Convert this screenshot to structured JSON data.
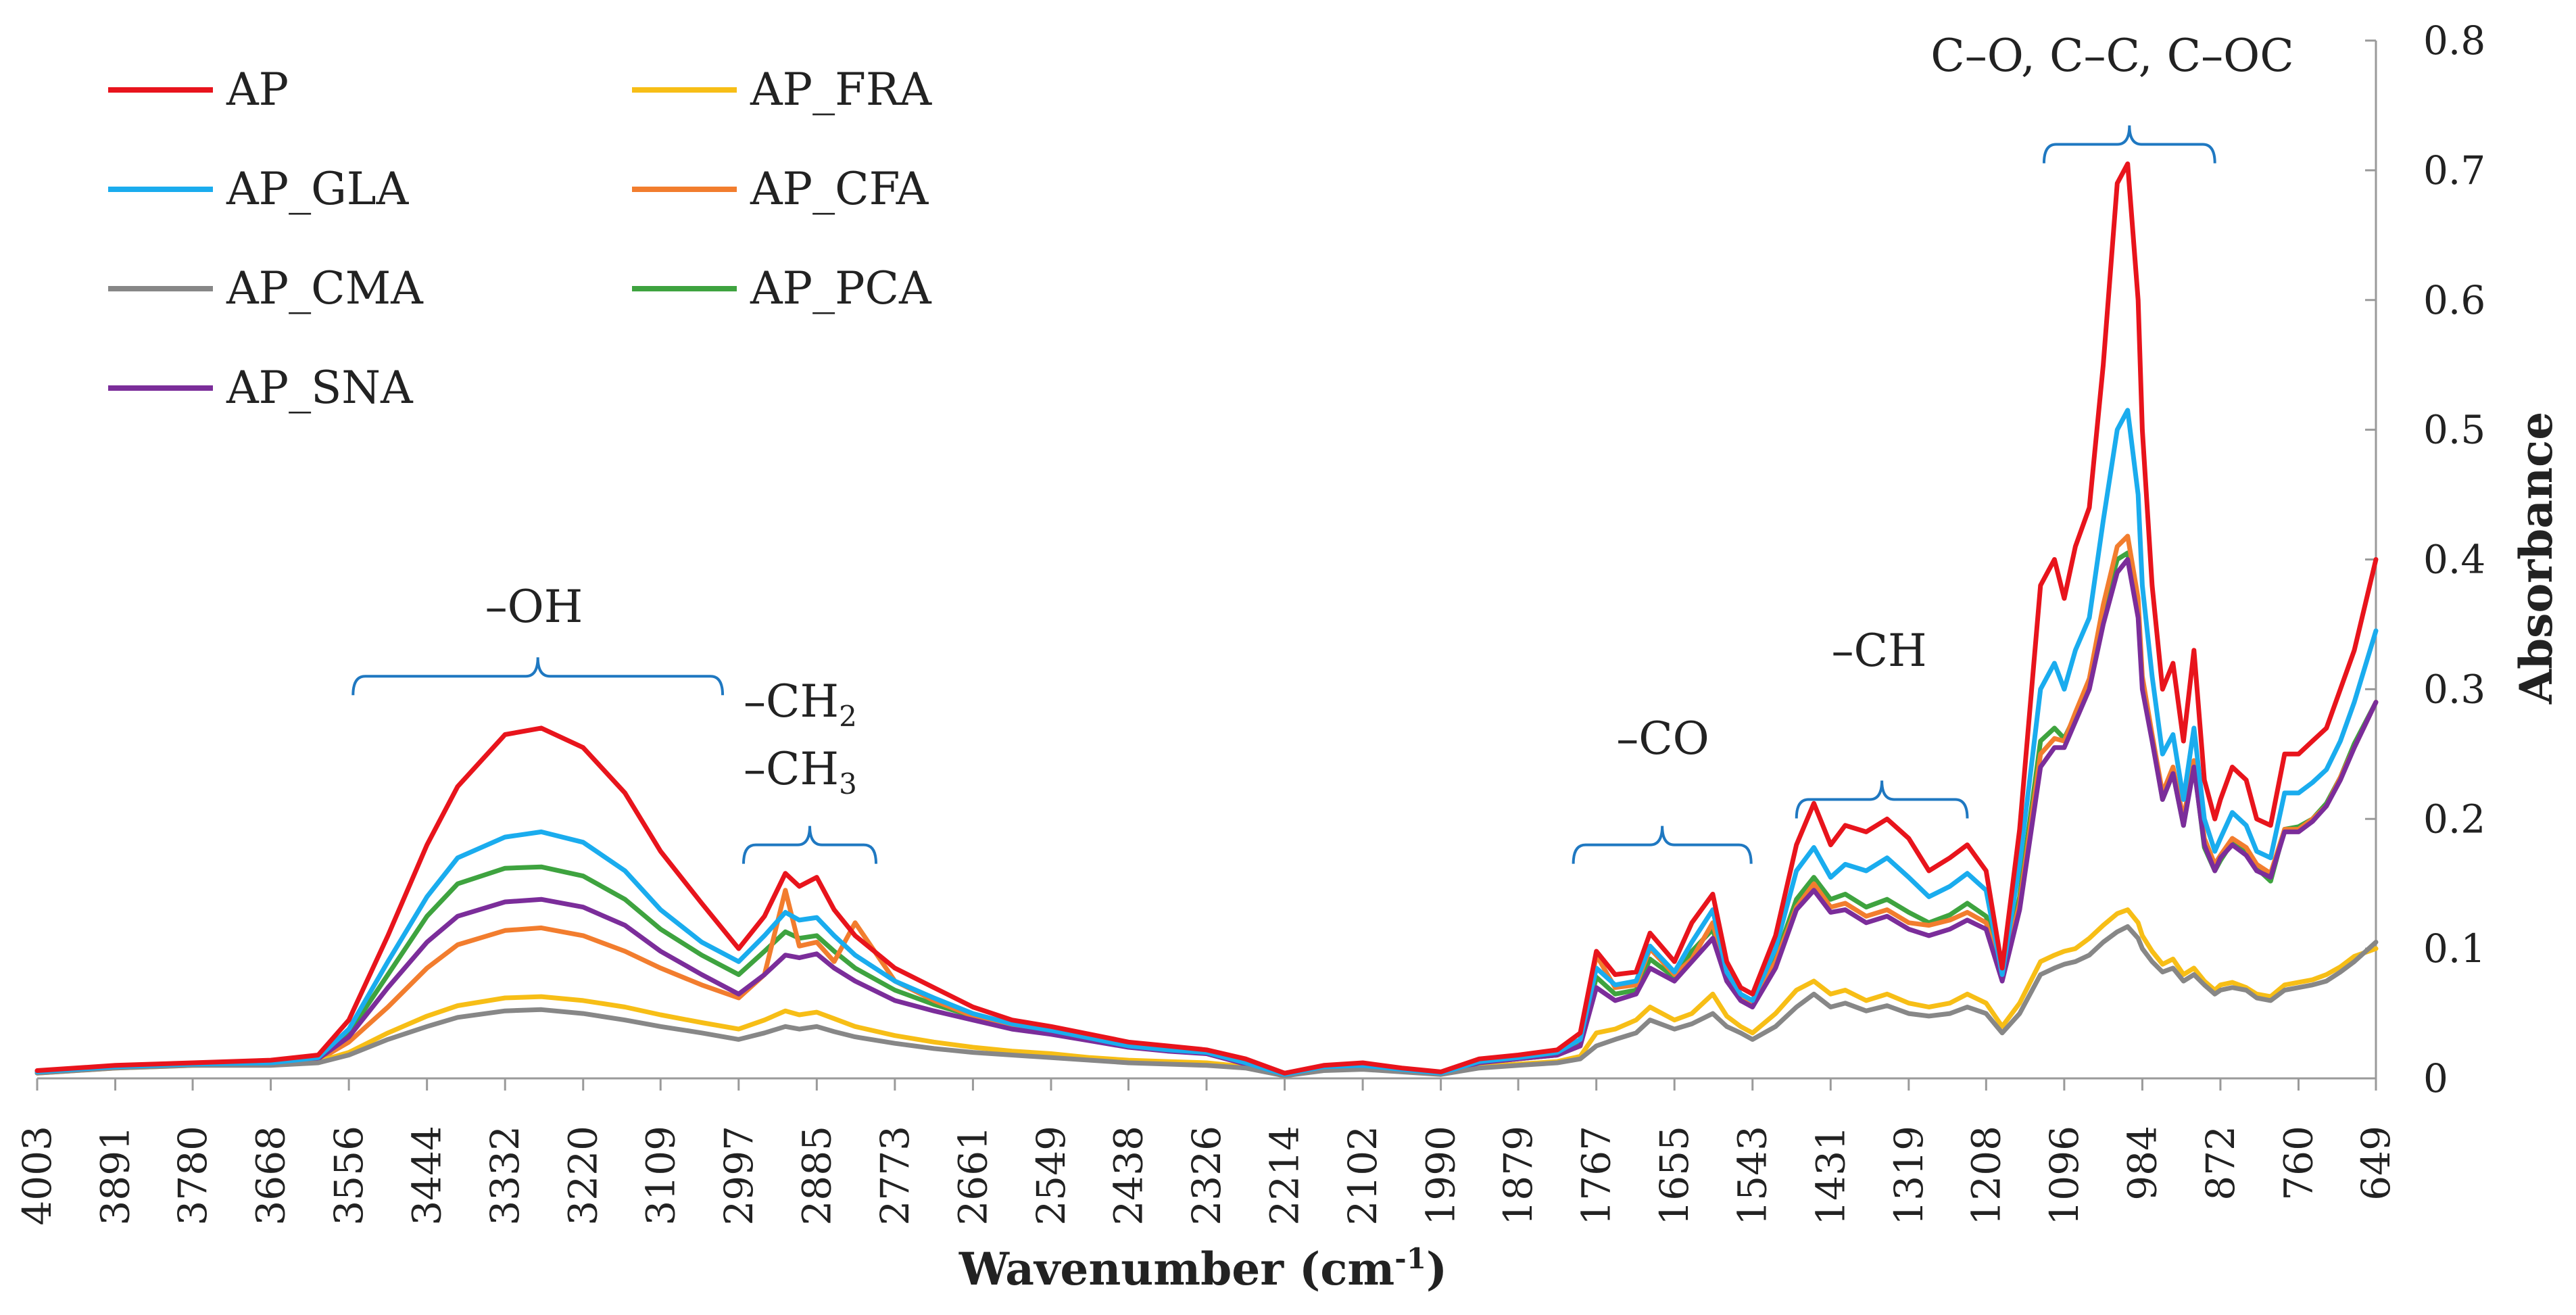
{
  "chart_data": {
    "type": "line",
    "title": "",
    "xlabel": "Wavenumber (cm",
    "xlabel_sup": "-1",
    "xlabel_suffix": ")",
    "ylabel": "Absorbance",
    "xlim": [
      4003,
      649
    ],
    "ylim": [
      0,
      0.8
    ],
    "x_ticks": [
      4003,
      3891,
      3780,
      3668,
      3556,
      3444,
      3332,
      3220,
      3109,
      2997,
      2885,
      2773,
      2661,
      2549,
      2438,
      2326,
      2214,
      2102,
      1990,
      1879,
      1767,
      1655,
      1543,
      1431,
      1319,
      1208,
      1096,
      984,
      872,
      760,
      649
    ],
    "y_ticks": [
      "0",
      "0.1",
      "0.2",
      "0.3",
      "0.4",
      "0.5",
      "0.6",
      "0.7",
      "0.8"
    ],
    "y_tick_values": [
      0,
      0.1,
      0.2,
      0.3,
      0.4,
      0.5,
      0.6,
      0.7,
      0.8
    ],
    "x": [
      4003,
      3891,
      3780,
      3668,
      3600,
      3556,
      3500,
      3444,
      3400,
      3332,
      3280,
      3220,
      3160,
      3109,
      3050,
      2997,
      2960,
      2930,
      2910,
      2885,
      2860,
      2830,
      2773,
      2717,
      2661,
      2605,
      2549,
      2493,
      2438,
      2382,
      2326,
      2270,
      2214,
      2158,
      2102,
      2046,
      1990,
      1935,
      1879,
      1823,
      1790,
      1767,
      1740,
      1710,
      1690,
      1655,
      1630,
      1600,
      1580,
      1560,
      1543,
      1510,
      1480,
      1455,
      1431,
      1410,
      1380,
      1350,
      1319,
      1290,
      1260,
      1235,
      1208,
      1185,
      1160,
      1130,
      1110,
      1096,
      1080,
      1060,
      1040,
      1020,
      1005,
      990,
      984,
      970,
      955,
      940,
      925,
      910,
      895,
      880,
      872,
      855,
      835,
      820,
      800,
      780,
      760,
      740,
      720,
      700,
      680,
      649
    ],
    "series": [
      {
        "name": "AP",
        "color": "#e8141c",
        "values": [
          0.006,
          0.01,
          0.012,
          0.014,
          0.018,
          0.045,
          0.11,
          0.18,
          0.225,
          0.265,
          0.27,
          0.255,
          0.22,
          0.175,
          0.135,
          0.1,
          0.125,
          0.158,
          0.148,
          0.155,
          0.13,
          0.11,
          0.085,
          0.07,
          0.055,
          0.045,
          0.04,
          0.034,
          0.028,
          0.025,
          0.022,
          0.015,
          0.004,
          0.01,
          0.012,
          0.008,
          0.005,
          0.015,
          0.018,
          0.022,
          0.035,
          0.098,
          0.08,
          0.082,
          0.112,
          0.09,
          0.12,
          0.142,
          0.09,
          0.07,
          0.065,
          0.11,
          0.18,
          0.212,
          0.18,
          0.195,
          0.19,
          0.2,
          0.185,
          0.16,
          0.17,
          0.18,
          0.16,
          0.085,
          0.192,
          0.38,
          0.4,
          0.37,
          0.41,
          0.44,
          0.55,
          0.69,
          0.705,
          0.6,
          0.5,
          0.38,
          0.3,
          0.32,
          0.26,
          0.33,
          0.23,
          0.2,
          0.215,
          0.24,
          0.23,
          0.2,
          0.195,
          0.25,
          0.25,
          0.26,
          0.27,
          0.3,
          0.33,
          0.4
        ]
      },
      {
        "name": "AP_GLA",
        "color": "#1aacee",
        "values": [
          0.005,
          0.009,
          0.011,
          0.012,
          0.016,
          0.038,
          0.09,
          0.14,
          0.17,
          0.186,
          0.19,
          0.182,
          0.16,
          0.13,
          0.105,
          0.09,
          0.11,
          0.128,
          0.122,
          0.124,
          0.11,
          0.095,
          0.075,
          0.062,
          0.05,
          0.042,
          0.037,
          0.031,
          0.025,
          0.022,
          0.02,
          0.012,
          0.003,
          0.009,
          0.01,
          0.007,
          0.004,
          0.013,
          0.016,
          0.02,
          0.03,
          0.085,
          0.072,
          0.075,
          0.102,
          0.082,
          0.105,
          0.13,
          0.082,
          0.065,
          0.06,
          0.1,
          0.16,
          0.178,
          0.155,
          0.165,
          0.16,
          0.17,
          0.155,
          0.14,
          0.148,
          0.158,
          0.145,
          0.08,
          0.165,
          0.3,
          0.32,
          0.3,
          0.33,
          0.355,
          0.43,
          0.5,
          0.515,
          0.45,
          0.38,
          0.31,
          0.25,
          0.265,
          0.215,
          0.27,
          0.2,
          0.175,
          0.185,
          0.205,
          0.195,
          0.175,
          0.17,
          0.22,
          0.22,
          0.228,
          0.238,
          0.26,
          0.29,
          0.345
        ]
      },
      {
        "name": "AP_CMA",
        "color": "#878787",
        "values": [
          0.004,
          0.008,
          0.01,
          0.01,
          0.012,
          0.018,
          0.03,
          0.04,
          0.047,
          0.052,
          0.053,
          0.05,
          0.045,
          0.04,
          0.035,
          0.03,
          0.035,
          0.04,
          0.038,
          0.04,
          0.036,
          0.032,
          0.027,
          0.023,
          0.02,
          0.018,
          0.016,
          0.014,
          0.012,
          0.011,
          0.01,
          0.008,
          0.002,
          0.006,
          0.007,
          0.005,
          0.003,
          0.008,
          0.01,
          0.012,
          0.015,
          0.025,
          0.03,
          0.035,
          0.045,
          0.038,
          0.042,
          0.05,
          0.04,
          0.035,
          0.03,
          0.04,
          0.055,
          0.065,
          0.055,
          0.058,
          0.052,
          0.056,
          0.05,
          0.048,
          0.05,
          0.055,
          0.05,
          0.035,
          0.05,
          0.08,
          0.085,
          0.088,
          0.09,
          0.095,
          0.105,
          0.113,
          0.117,
          0.108,
          0.1,
          0.09,
          0.082,
          0.085,
          0.075,
          0.08,
          0.072,
          0.065,
          0.068,
          0.07,
          0.068,
          0.062,
          0.06,
          0.068,
          0.07,
          0.072,
          0.075,
          0.082,
          0.09,
          0.105
        ]
      },
      {
        "name": "AP_SNA",
        "color": "#7b2d9a",
        "values": [
          0.005,
          0.009,
          0.011,
          0.012,
          0.015,
          0.032,
          0.07,
          0.105,
          0.125,
          0.136,
          0.138,
          0.132,
          0.118,
          0.098,
          0.08,
          0.065,
          0.08,
          0.095,
          0.093,
          0.096,
          0.085,
          0.075,
          0.06,
          0.052,
          0.045,
          0.038,
          0.034,
          0.029,
          0.024,
          0.021,
          0.019,
          0.011,
          0.003,
          0.008,
          0.01,
          0.007,
          0.004,
          0.012,
          0.015,
          0.018,
          0.025,
          0.07,
          0.06,
          0.065,
          0.085,
          0.075,
          0.09,
          0.108,
          0.075,
          0.06,
          0.055,
          0.085,
          0.13,
          0.145,
          0.128,
          0.13,
          0.12,
          0.125,
          0.115,
          0.11,
          0.115,
          0.122,
          0.115,
          0.075,
          0.13,
          0.24,
          0.255,
          0.255,
          0.275,
          0.3,
          0.35,
          0.39,
          0.4,
          0.355,
          0.3,
          0.26,
          0.215,
          0.235,
          0.195,
          0.24,
          0.18,
          0.16,
          0.17,
          0.18,
          0.172,
          0.16,
          0.155,
          0.19,
          0.19,
          0.198,
          0.21,
          0.23,
          0.255,
          0.29
        ]
      },
      {
        "name": "AP_FRA",
        "color": "#f7be16",
        "values": [
          0.004,
          0.008,
          0.01,
          0.011,
          0.013,
          0.02,
          0.035,
          0.048,
          0.056,
          0.062,
          0.063,
          0.06,
          0.055,
          0.049,
          0.043,
          0.038,
          0.045,
          0.052,
          0.049,
          0.051,
          0.046,
          0.04,
          0.033,
          0.028,
          0.024,
          0.021,
          0.019,
          0.016,
          0.014,
          0.013,
          0.012,
          0.009,
          0.002,
          0.007,
          0.008,
          0.006,
          0.003,
          0.009,
          0.011,
          0.013,
          0.017,
          0.035,
          0.038,
          0.045,
          0.055,
          0.045,
          0.05,
          0.065,
          0.048,
          0.04,
          0.035,
          0.05,
          0.068,
          0.075,
          0.065,
          0.068,
          0.06,
          0.065,
          0.058,
          0.055,
          0.058,
          0.065,
          0.058,
          0.04,
          0.058,
          0.09,
          0.095,
          0.098,
          0.1,
          0.108,
          0.118,
          0.127,
          0.13,
          0.12,
          0.11,
          0.098,
          0.088,
          0.092,
          0.08,
          0.085,
          0.075,
          0.068,
          0.072,
          0.074,
          0.07,
          0.065,
          0.063,
          0.072,
          0.074,
          0.076,
          0.08,
          0.086,
          0.094,
          0.1
        ]
      },
      {
        "name": "AP_CFA",
        "color": "#f27d2e",
        "values": [
          0.005,
          0.009,
          0.011,
          0.012,
          0.014,
          0.028,
          0.055,
          0.085,
          0.103,
          0.114,
          0.116,
          0.11,
          0.098,
          0.085,
          0.072,
          0.062,
          0.08,
          0.145,
          0.102,
          0.105,
          0.09,
          0.12,
          0.075,
          0.06,
          0.048,
          0.04,
          0.035,
          0.03,
          0.025,
          0.022,
          0.02,
          0.012,
          0.003,
          0.009,
          0.01,
          0.007,
          0.004,
          0.012,
          0.015,
          0.018,
          0.025,
          0.095,
          0.07,
          0.072,
          0.1,
          0.08,
          0.092,
          0.12,
          0.078,
          0.062,
          0.058,
          0.09,
          0.132,
          0.15,
          0.132,
          0.135,
          0.125,
          0.13,
          0.12,
          0.118,
          0.122,
          0.128,
          0.12,
          0.078,
          0.135,
          0.25,
          0.262,
          0.26,
          0.282,
          0.308,
          0.365,
          0.41,
          0.418,
          0.37,
          0.31,
          0.265,
          0.22,
          0.24,
          0.2,
          0.245,
          0.185,
          0.165,
          0.172,
          0.185,
          0.178,
          0.165,
          0.158,
          0.192,
          0.192,
          0.2,
          0.21,
          0.232,
          0.255,
          0.29
        ]
      },
      {
        "name": "AP_PCA",
        "color": "#3ea33f",
        "values": [
          0.005,
          0.009,
          0.011,
          0.012,
          0.015,
          0.035,
          0.08,
          0.125,
          0.15,
          0.162,
          0.163,
          0.156,
          0.138,
          0.115,
          0.095,
          0.08,
          0.098,
          0.113,
          0.108,
          0.11,
          0.098,
          0.085,
          0.068,
          0.057,
          0.048,
          0.04,
          0.035,
          0.03,
          0.025,
          0.022,
          0.02,
          0.012,
          0.003,
          0.009,
          0.01,
          0.007,
          0.004,
          0.012,
          0.015,
          0.018,
          0.027,
          0.078,
          0.065,
          0.068,
          0.092,
          0.078,
          0.098,
          0.115,
          0.078,
          0.062,
          0.058,
          0.092,
          0.138,
          0.155,
          0.138,
          0.142,
          0.132,
          0.138,
          0.128,
          0.12,
          0.126,
          0.135,
          0.125,
          0.078,
          0.14,
          0.26,
          0.27,
          0.262,
          0.28,
          0.305,
          0.36,
          0.4,
          0.405,
          0.36,
          0.305,
          0.262,
          0.215,
          0.235,
          0.195,
          0.242,
          0.178,
          0.16,
          0.168,
          0.182,
          0.176,
          0.162,
          0.152,
          0.192,
          0.194,
          0.2,
          0.212,
          0.232,
          0.258,
          0.29
        ]
      }
    ],
    "legend": [
      "AP",
      "AP_FRA",
      "AP_GLA",
      "AP_CFA",
      "AP_CMA",
      "AP_PCA",
      "AP_SNA"
    ],
    "annotations": {
      "oh": {
        "text": "–OH",
        "from": 3550,
        "to": 3020,
        "y": 0.31
      },
      "ch2ch3": {
        "line1": "–CH",
        "sub1": "2",
        "line2": "–CH",
        "sub2": "3",
        "from": 2990,
        "to": 2800,
        "y": 0.18
      },
      "co": {
        "text": "–CO",
        "from": 1800,
        "to": 1545,
        "y": 0.18
      },
      "ch": {
        "text": "–CH",
        "from": 1480,
        "to": 1235,
        "y": 0.215
      },
      "cocc": {
        "text": "C–O, C–C, C–OC",
        "from": 1125,
        "to": 880,
        "y": 0.72
      }
    },
    "bracket_color": "#1f78c1"
  }
}
